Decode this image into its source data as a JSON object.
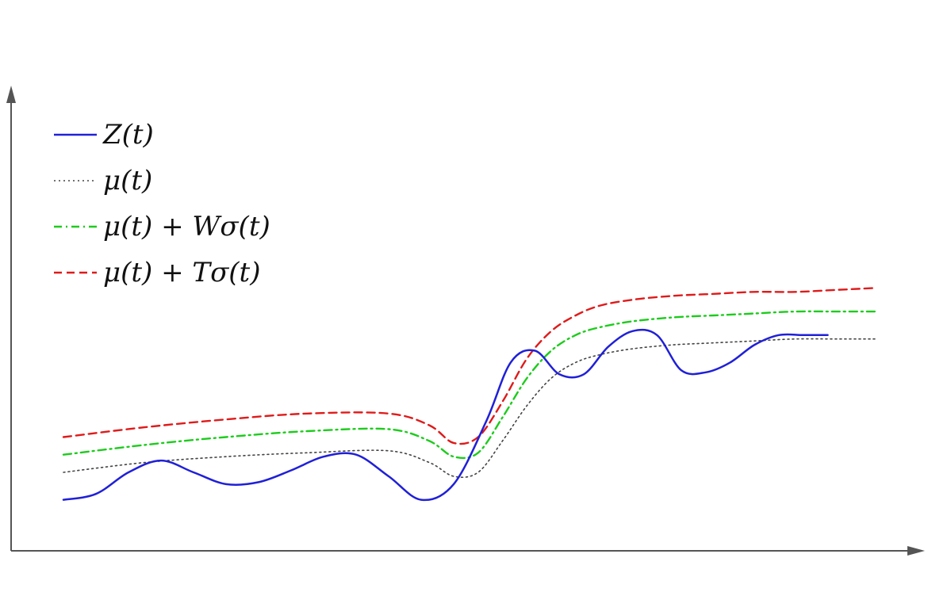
{
  "chart_data": {
    "type": "line",
    "title": "",
    "xlabel": "",
    "ylabel": "",
    "grid": false,
    "legend_position": "top-left",
    "xlim": [
      0,
      100
    ],
    "ylim": [
      0,
      100
    ],
    "series": [
      {
        "name": "Z(t)",
        "color": "#2020d8",
        "style": "solid",
        "x": [
          0,
          4,
          8,
          12,
          16,
          20,
          24,
          28,
          32,
          36,
          40,
          44,
          48,
          52,
          55,
          58,
          61,
          64,
          67,
          70,
          73,
          76,
          79,
          82,
          85,
          88,
          91,
          94,
          97,
          100
        ],
        "y": [
          13,
          14.5,
          20,
          23,
          20,
          17,
          17.5,
          20.5,
          24,
          24.5,
          19,
          13,
          17,
          33,
          48,
          51,
          45,
          45,
          52,
          56,
          55,
          46,
          45.5,
          48,
          52.5,
          55,
          55,
          55,
          55,
          55
        ]
      },
      {
        "name": "μ(t)",
        "color": "#444444",
        "style": "dotted",
        "x": [
          0,
          10,
          20,
          30,
          40,
          45,
          48,
          51,
          54,
          57,
          60,
          63,
          66,
          70,
          75,
          80,
          85,
          90,
          95,
          100
        ],
        "y": [
          20,
          22.5,
          24,
          25,
          25.5,
          22.5,
          19,
          20,
          28,
          37,
          44,
          48,
          50,
          51.5,
          52.5,
          53,
          53.5,
          54,
          54,
          54
        ]
      },
      {
        "name": "μ(t) + Wσ(t)",
        "color": "#1ccc1c",
        "style": "dashdot",
        "x": [
          0,
          10,
          20,
          30,
          40,
          45,
          48,
          51,
          54,
          57,
          60,
          63,
          66,
          70,
          75,
          80,
          85,
          90,
          95,
          100
        ],
        "y": [
          24.5,
          27,
          29,
          30.5,
          31,
          28,
          24,
          25,
          34,
          44,
          51,
          55,
          57,
          58.5,
          59.5,
          60,
          60.5,
          61,
          61,
          61
        ]
      },
      {
        "name": "μ(t) + Tσ(t)",
        "color": "#e01a1a",
        "style": "dashed",
        "x": [
          0,
          10,
          20,
          30,
          40,
          45,
          48,
          51,
          54,
          57,
          60,
          63,
          66,
          70,
          75,
          80,
          85,
          90,
          95,
          100
        ],
        "y": [
          29,
          31.5,
          33.5,
          35,
          35,
          32,
          27.5,
          29,
          38,
          49,
          56,
          60,
          62.5,
          64,
          65,
          65.5,
          66,
          66,
          66.5,
          67
        ]
      }
    ]
  }
}
